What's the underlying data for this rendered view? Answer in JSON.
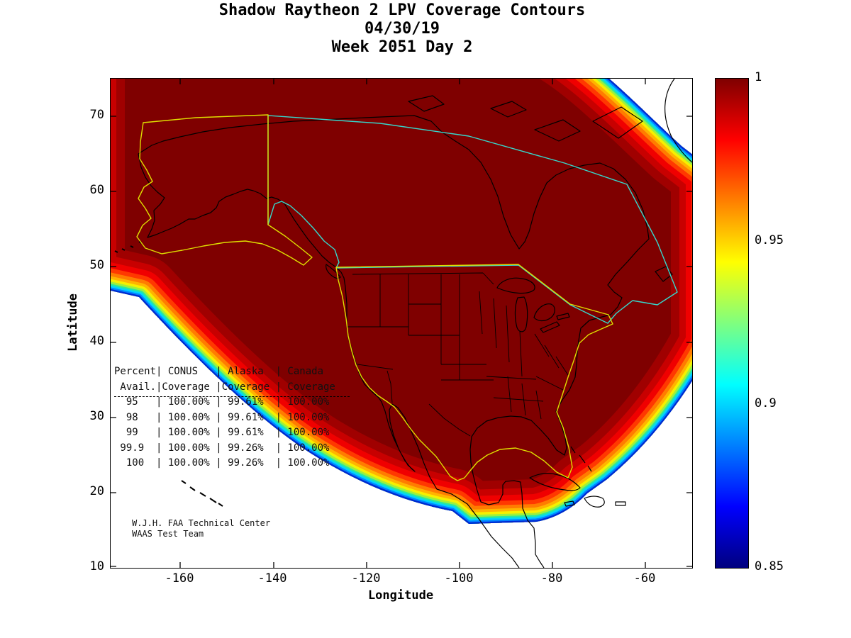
{
  "title": {
    "line1": "Shadow Raytheon 2 LPV Coverage Contours",
    "line2": "04/30/19",
    "line3": "Week 2051 Day 2"
  },
  "axes": {
    "xlabel": "Longitude",
    "ylabel": "Latitude",
    "xticks": [
      "-160",
      "-140",
      "-120",
      "-100",
      "-80",
      "-60"
    ],
    "yticks": [
      "70",
      "60",
      "50",
      "40",
      "30",
      "20",
      "10"
    ]
  },
  "colorbar": {
    "ticks": [
      "1",
      "0.95",
      "0.9",
      "0.85"
    ],
    "min": 0.85,
    "max": 1,
    "colormap": "jet",
    "colors_top_to_bottom": [
      "#7f0000",
      "#ff0000",
      "#ff7f00",
      "#ffff00",
      "#7fff7f",
      "#00ffff",
      "#007fff",
      "#0000ff",
      "#00007f"
    ]
  },
  "overlay": {
    "table_lines": [
      "Percent| CONUS   | Alaska  | Canada  ",
      " Avail.|Coverage |Coverage | Coverage",
      "  95   | 100.00% | 99.61%  | 100.00% ",
      "  98   | 100.00% | 99.61%  | 100.00% ",
      "  99   | 100.00% | 99.61%  | 100.00% ",
      " 99.9  | 100.00% | 99.26%  | 100.00% ",
      "  100  | 100.00% | 99.26%  | 100.00% "
    ],
    "credit_line1": "W.J.H. FAA Technical Center",
    "credit_line2": "WAAS Test Team"
  },
  "map": {
    "outline_colors": {
      "coastline": "#000000",
      "conus_alaska_service_volume": "#dede00",
      "canada_service_volume": "#35d8cc"
    },
    "fill_interior": "#7f0000"
  },
  "chart_data": {
    "type": "heatmap",
    "title": "Shadow Raytheon 2 LPV Coverage Contours",
    "subtitle": [
      "04/30/19",
      "Week 2051 Day 2"
    ],
    "xlabel": "Longitude",
    "ylabel": "Latitude",
    "xlim": [
      -175,
      -50
    ],
    "ylim": [
      10,
      75
    ],
    "xticks": [
      -160,
      -140,
      -120,
      -100,
      -80,
      -60
    ],
    "yticks": [
      10,
      20,
      30,
      40,
      50,
      60,
      70
    ],
    "grid": false,
    "legend_position": "none",
    "colorbar": {
      "min": 0.85,
      "max": 1,
      "ticks": [
        1,
        0.95,
        0.9,
        0.85
      ],
      "colormap": "jet"
    },
    "description": "Filled contour map of WAAS LPV coverage fraction over North America; interior plateau at 1.0 (dark red) covering CONUS, Alaska and Canada, with rainbow contour bands falling to 0.85 along the southwest Pacific edge, southern/Gulf edge and Atlantic edge",
    "coverage_table": {
      "columns": [
        "Percent Avail.",
        "CONUS Coverage",
        "Alaska Coverage",
        "Canada Coverage"
      ],
      "rows": [
        [
          "95",
          "100.00%",
          "99.61%",
          "100.00%"
        ],
        [
          "98",
          "100.00%",
          "99.61%",
          "100.00%"
        ],
        [
          "99",
          "100.00%",
          "99.61%",
          "100.00%"
        ],
        [
          "99.9",
          "100.00%",
          "99.26%",
          "100.00%"
        ],
        [
          "100",
          "100.00%",
          "99.26%",
          "100.00%"
        ]
      ]
    }
  }
}
